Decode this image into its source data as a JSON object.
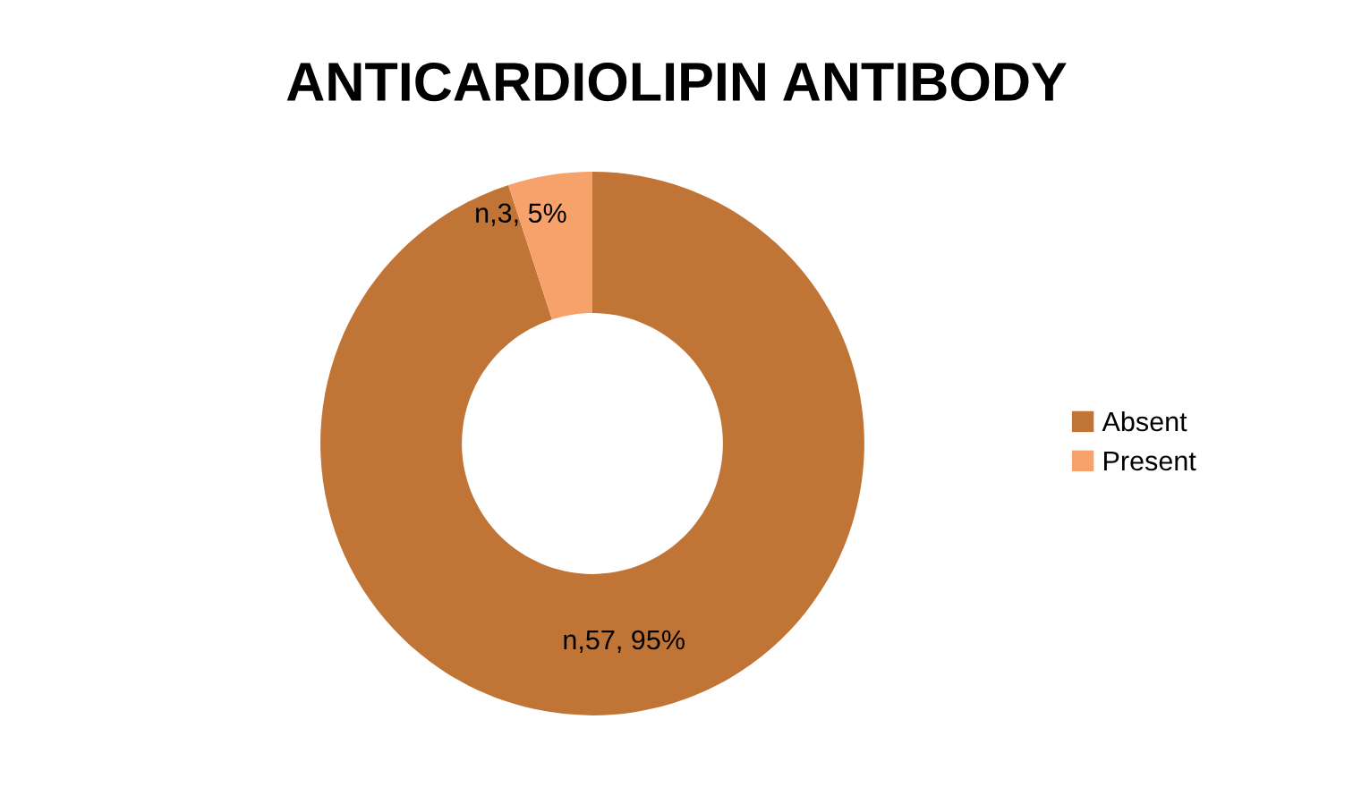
{
  "chart_data": {
    "type": "donut",
    "title": "ANTICARDIOLIPIN ANTIBODY",
    "categories": [
      "Absent",
      "Present"
    ],
    "values": [
      57,
      3
    ],
    "value_labels": [
      "n,57, 95%",
      "n,3, 5%"
    ],
    "colors": [
      "#c07537",
      "#f7a26b"
    ],
    "legend": "right"
  }
}
